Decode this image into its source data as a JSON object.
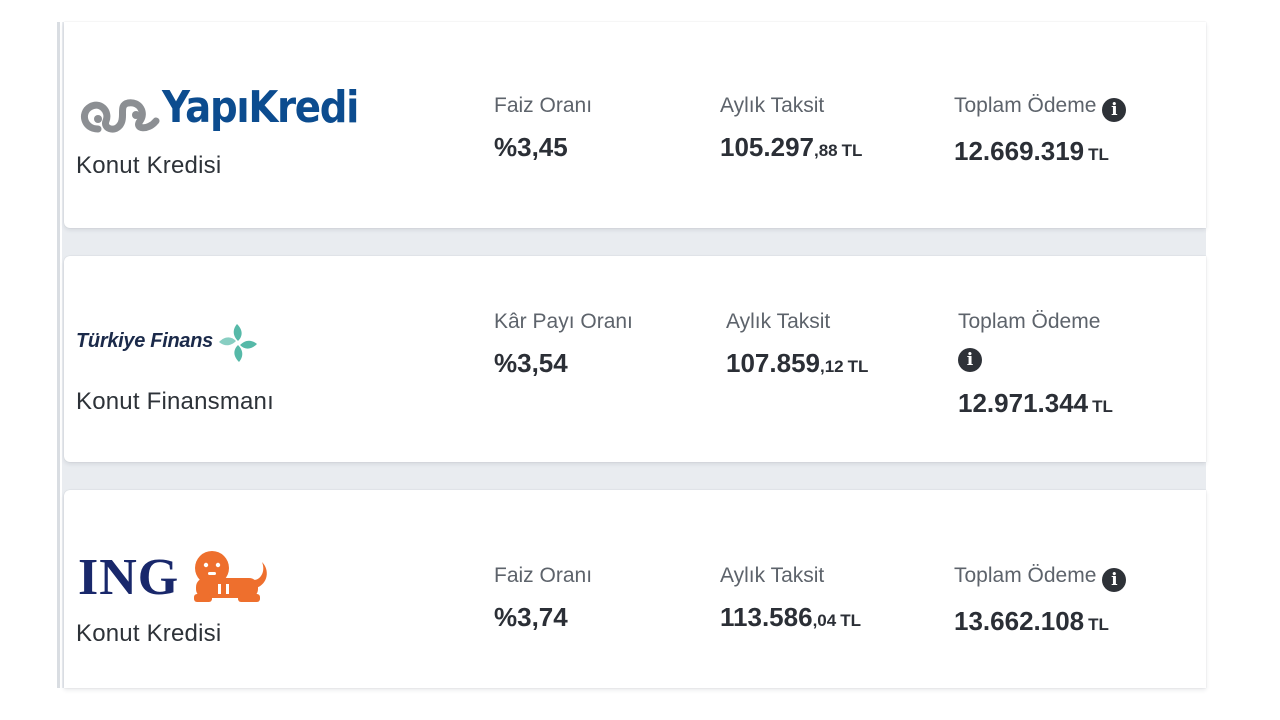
{
  "offers": [
    {
      "bank": "YapıKredi",
      "product": "Konut Kredisi",
      "rate_label": "Faiz Oranı",
      "rate_value": "%3,45",
      "monthly_label": "Aylık Taksit",
      "monthly_main": "105.297",
      "monthly_decimals": ",88",
      "monthly_unit": "TL",
      "total_label": "Toplam Ödeme",
      "total_value": "12.669.319",
      "total_unit": "TL",
      "logo_icon": "yapikredi-logo-icon",
      "info_icon": "info-icon"
    },
    {
      "bank": "Türkiye Finans",
      "product": "Konut Finansmanı",
      "rate_label": "Kâr Payı Oranı",
      "rate_value": "%3,54",
      "monthly_label": "Aylık Taksit",
      "monthly_main": "107.859",
      "monthly_decimals": ",12",
      "monthly_unit": "TL",
      "total_label": "Toplam Ödeme",
      "total_value": "12.971.344",
      "total_unit": "TL",
      "logo_icon": "turkiye-finans-logo-icon",
      "info_icon": "info-icon"
    },
    {
      "bank": "ING",
      "product": "Konut Kredisi",
      "rate_label": "Faiz Oranı",
      "rate_value": "%3,74",
      "monthly_label": "Aylık Taksit",
      "monthly_main": "113.586",
      "monthly_decimals": ",04",
      "monthly_unit": "TL",
      "total_label": "Toplam Ödeme",
      "total_value": "13.662.108",
      "total_unit": "TL",
      "logo_icon": "ing-lion-logo-icon",
      "info_icon": "info-icon"
    }
  ],
  "info_glyph": "i",
  "colors": {
    "yapikredi_blue": "#0c4c8f",
    "yapikredi_grey": "#8c8f93",
    "turkiye_finans_teal": "#56b9a8",
    "ing_navy": "#19286b",
    "ing_orange": "#ee6f2d"
  }
}
